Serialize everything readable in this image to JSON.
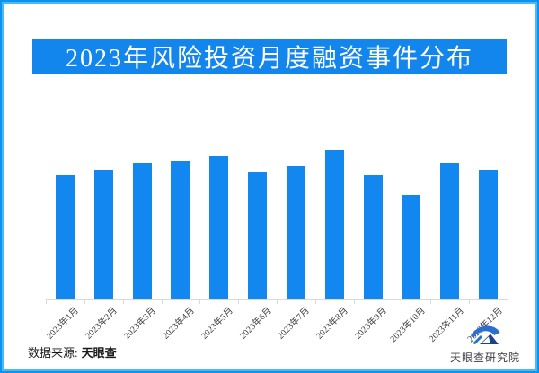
{
  "frame": {
    "border_outer_color": "#0d93ee",
    "border_inner_color": "#4bb8f7",
    "background": "#ffffff"
  },
  "header": {
    "title": "2023年风险投资月度融资事件分布",
    "banner_bg": "#1286ec",
    "title_color": "#ffffff"
  },
  "chart_data": {
    "type": "bar",
    "title": "2023年风险投资月度融资事件分布",
    "categories": [
      "2023年1月",
      "2023年2月",
      "2023年3月",
      "2023年4月",
      "2023年5月",
      "2023年6月",
      "2023年7月",
      "2023年8月",
      "2023年9月",
      "2023年10月",
      "2023年11月",
      "2023年12月"
    ],
    "values": [
      83,
      86,
      91,
      92,
      96,
      85,
      89,
      100,
      83,
      70,
      91,
      86
    ],
    "value_scale": "relative height, tallest bar (2023年8月) = 100; no y-axis tick labels or data labels are shown in the image",
    "xlabel": "",
    "ylabel": "",
    "grid": false,
    "legend": false,
    "bar_color": "#1287f0",
    "axis_line_color": "#d9d9d9",
    "tick_label_color": "#3c3c3c"
  },
  "footer": {
    "source_label": "数据来源:",
    "source_value": "天眼查",
    "logo_text": "天眼查研究院"
  }
}
